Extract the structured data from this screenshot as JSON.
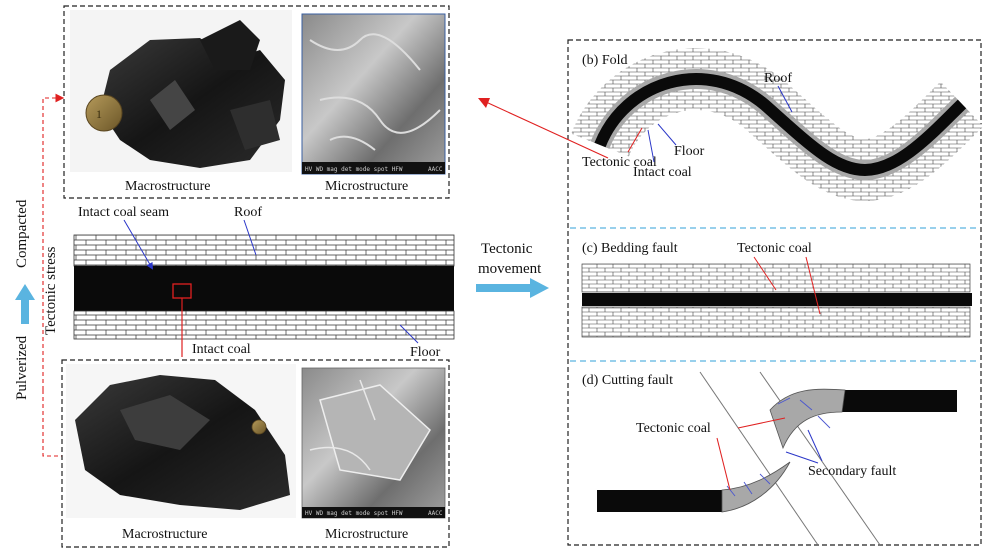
{
  "top_left": {
    "macro_caption": "Macrostructure",
    "micro_caption": "Microstructure",
    "sem_bar_text": "HV  WD  mag  det  mode  spot  HFW",
    "sem_tag": "AACC"
  },
  "bottom_left": {
    "macro_caption": "Macrostructure",
    "micro_caption": "Microstructure",
    "sem_bar_text": "HV  WD  mag  det  mode  spot  HFW",
    "sem_tag": "AACC"
  },
  "seam": {
    "intact_coal_seam": "Intact coal seam",
    "roof": "Roof",
    "intact_coal": "Intact coal",
    "floor": "Floor"
  },
  "side_labels": {
    "pulverized": "Pulverized",
    "tectonic_stress": "Tectonic stress",
    "compacted": "Compacted"
  },
  "arrow": {
    "line1": "Tectonic",
    "line2": "movement"
  },
  "fold": {
    "title": "(b) Fold",
    "roof": "Roof",
    "floor": "Floor",
    "tectonic_coal": "Tectonic coal",
    "intact_coal": "Intact coal"
  },
  "bedding": {
    "title": "(c) Bedding fault",
    "tectonic_coal": "Tectonic coal"
  },
  "cutting": {
    "title": "(d) Cutting fault",
    "tectonic_coal": "Tectonic coal",
    "secondary_fault": "Secondary fault"
  },
  "colors": {
    "coal": "#0a0a0a",
    "tectonic_coal": "#a8a8a8",
    "red": "#e02020",
    "blue": "#2a36c8",
    "arrow": "#5ab4e0",
    "dash_divider": "#5ab4e0"
  }
}
